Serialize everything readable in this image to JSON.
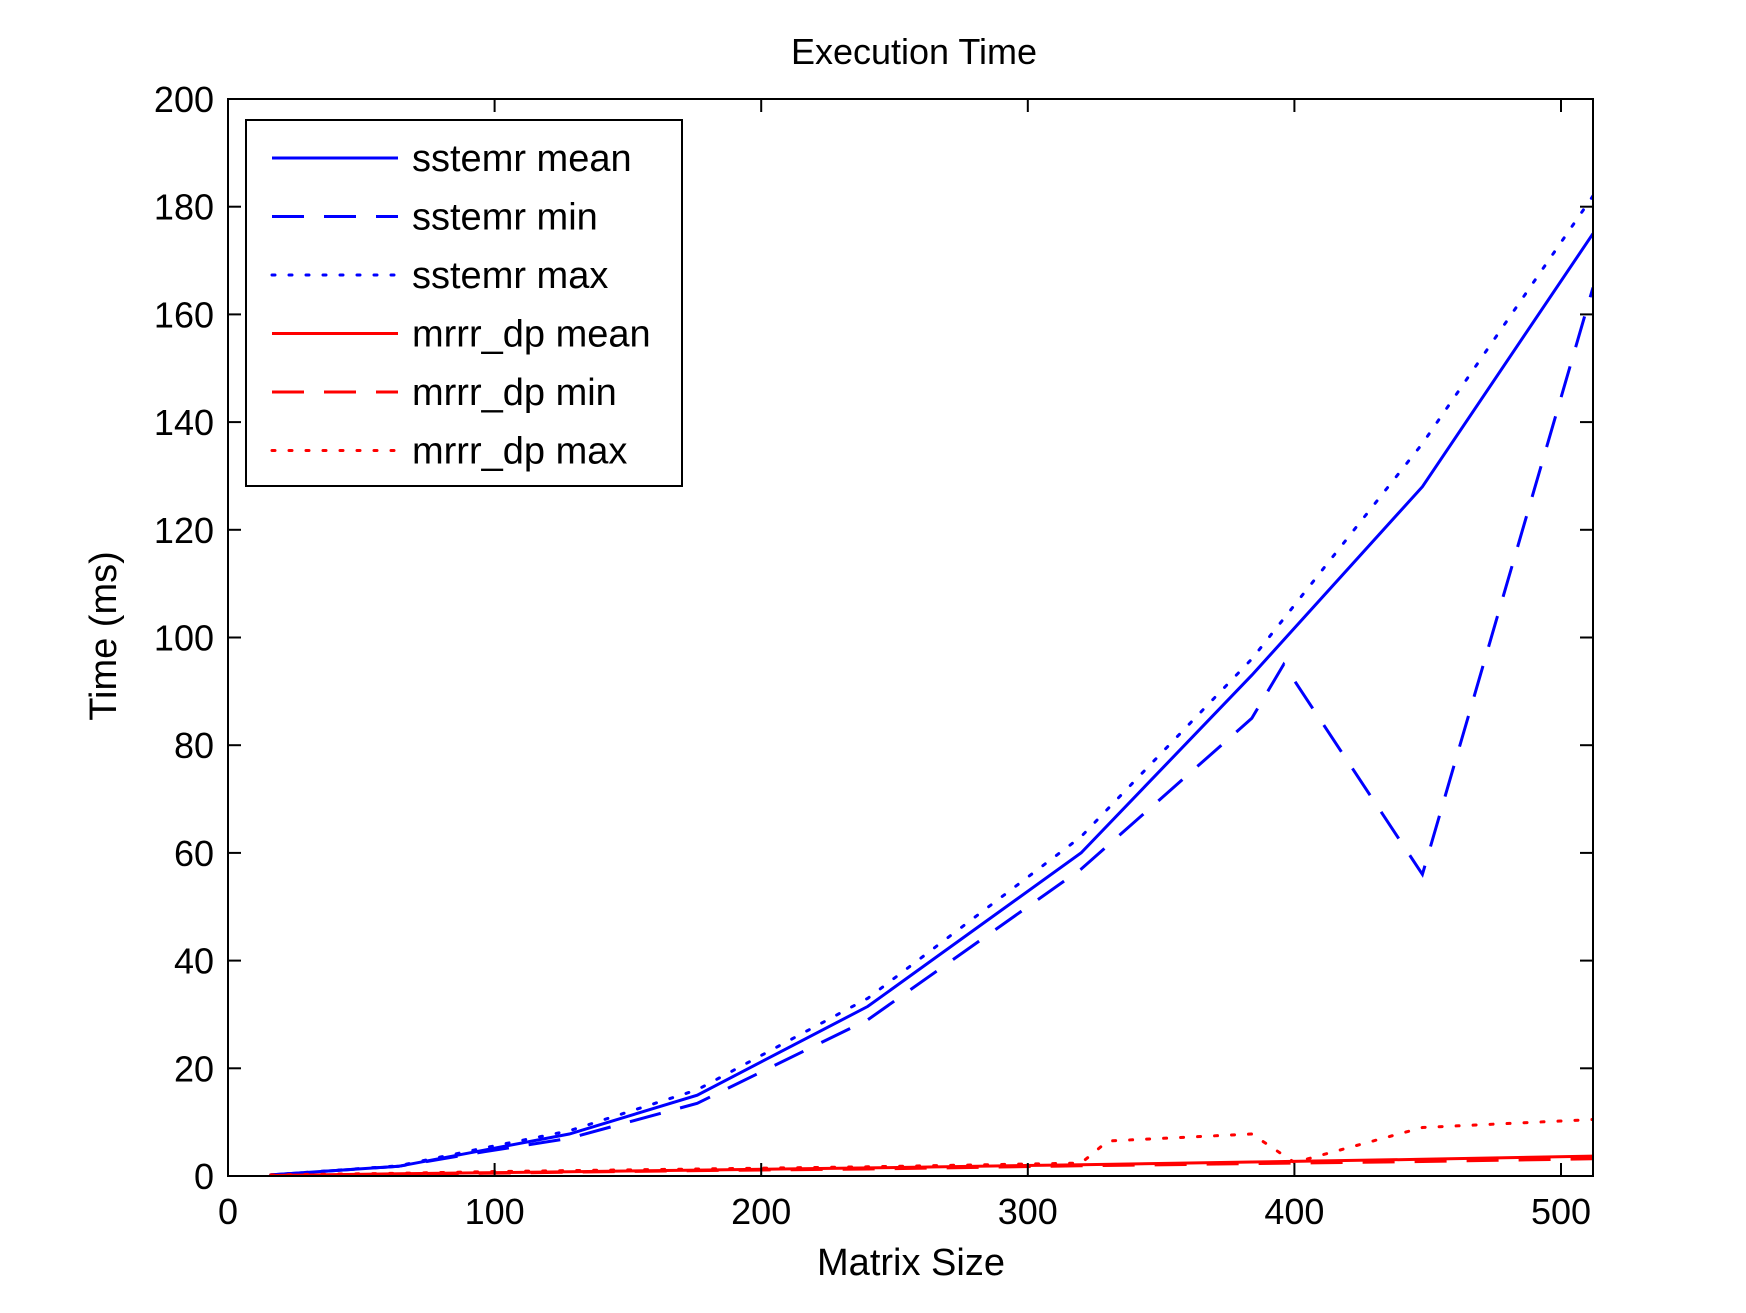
{
  "chart_data": {
    "type": "line",
    "title": "Execution Time",
    "xlabel": "Matrix Size",
    "ylabel": "Time (ms)",
    "xlim": [
      0,
      512
    ],
    "ylim": [
      0,
      200
    ],
    "xticks": [
      0,
      100,
      200,
      300,
      400,
      500
    ],
    "yticks": [
      0,
      20,
      40,
      60,
      80,
      100,
      120,
      140,
      160,
      180,
      200
    ],
    "grid": false,
    "legend_position": "top-left",
    "series": [
      {
        "name": "sstemr mean",
        "color": "#0000ff",
        "style": "solid",
        "x": [
          16,
          64,
          96,
          128,
          176,
          240,
          320,
          384,
          448,
          512
        ],
        "y": [
          0.2,
          1.8,
          4.8,
          7.8,
          15,
          31.5,
          60,
          93,
          128,
          175
        ]
      },
      {
        "name": "sstemr min",
        "color": "#0000ff",
        "style": "dashed",
        "x": [
          16,
          64,
          96,
          128,
          176,
          240,
          320,
          384,
          396,
          448,
          512
        ],
        "y": [
          0.2,
          1.8,
          4.5,
          7,
          13.5,
          29,
          57,
          85,
          95,
          56,
          165
        ]
      },
      {
        "name": "sstemr max",
        "color": "#0000ff",
        "style": "dotted",
        "x": [
          16,
          64,
          96,
          128,
          176,
          240,
          320,
          384,
          448,
          512
        ],
        "y": [
          0.2,
          1.9,
          5.2,
          8.4,
          16,
          33,
          63,
          96,
          136,
          182
        ]
      },
      {
        "name": "mrrr_dp mean",
        "color": "#ff0000",
        "style": "solid",
        "x": [
          16,
          64,
          96,
          128,
          176,
          240,
          320,
          384,
          448,
          512
        ],
        "y": [
          0.1,
          0.4,
          0.6,
          0.8,
          1.1,
          1.5,
          2.1,
          2.6,
          3.1,
          3.7
        ]
      },
      {
        "name": "mrrr_dp min",
        "color": "#ff0000",
        "style": "dashed",
        "x": [
          16,
          64,
          96,
          128,
          176,
          240,
          320,
          384,
          448,
          512
        ],
        "y": [
          0.1,
          0.3,
          0.5,
          0.7,
          1.0,
          1.3,
          1.9,
          2.3,
          2.7,
          3.2
        ]
      },
      {
        "name": "mrrr_dp max",
        "color": "#ff0000",
        "style": "dotted",
        "x": [
          16,
          64,
          96,
          128,
          176,
          240,
          320,
          330,
          384,
          400,
          448,
          512
        ],
        "y": [
          0.2,
          0.5,
          0.8,
          1.0,
          1.3,
          1.7,
          2.4,
          6.5,
          7.8,
          2.5,
          9,
          10.5
        ]
      }
    ]
  }
}
